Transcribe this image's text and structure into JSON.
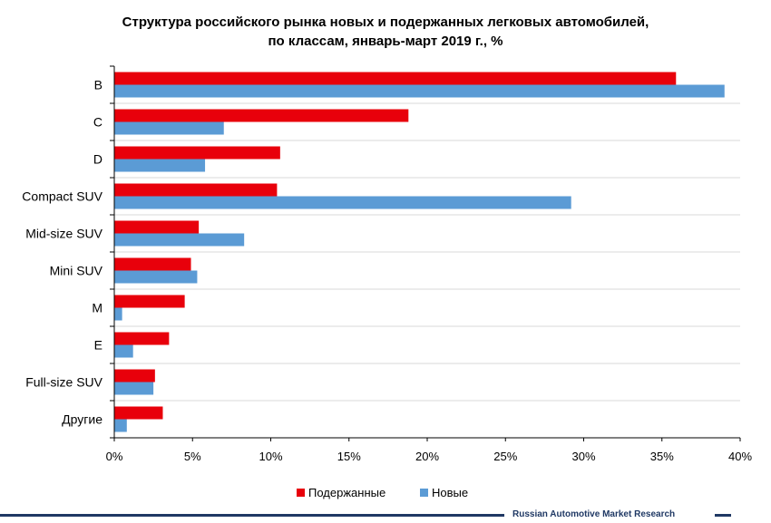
{
  "chart_data": {
    "type": "bar",
    "orientation": "horizontal",
    "title_line1": "Структура российского рынка новых и подержанных легковых автомобилей,",
    "title_line2": "по классам, январь-март 2019 г., %",
    "categories": [
      "B",
      "C",
      "D",
      "Compact SUV",
      "Mid-size SUV",
      "Mini SUV",
      "M",
      "E",
      "Full-size SUV",
      "Другие"
    ],
    "series": [
      {
        "name": "Подержанные",
        "color": "#e8000b",
        "values": [
          35.9,
          18.8,
          10.6,
          10.4,
          5.4,
          4.9,
          4.5,
          3.5,
          2.6,
          3.1
        ]
      },
      {
        "name": "Новые",
        "color": "#5b9bd5",
        "values": [
          39.0,
          7.0,
          5.8,
          29.2,
          8.3,
          5.3,
          0.5,
          1.2,
          2.5,
          0.8
        ]
      }
    ],
    "xlim": [
      0,
      40
    ],
    "xticks": [
      "0%",
      "5%",
      "10%",
      "15%",
      "20%",
      "25%",
      "30%",
      "35%",
      "40%"
    ],
    "legend_position": "bottom",
    "grid": true
  },
  "source_label": "Russian Automotive Market Research",
  "colors": {
    "axis": "#000000",
    "grid": "#d9d9d9",
    "footer_line": "#1f3864"
  }
}
